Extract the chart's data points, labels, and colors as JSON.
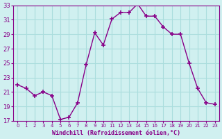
{
  "x": [
    0,
    1,
    2,
    3,
    4,
    5,
    6,
    7,
    8,
    9,
    10,
    11,
    12,
    13,
    14,
    15,
    16,
    17,
    18,
    19,
    20,
    21,
    22,
    23
  ],
  "y": [
    22.0,
    21.5,
    20.5,
    21.0,
    20.5,
    17.2,
    17.5,
    19.5,
    24.8,
    29.2,
    27.5,
    31.1,
    32.0,
    32.0,
    33.2,
    31.5,
    31.5,
    30.0,
    29.0,
    29.0,
    25.0,
    21.5,
    19.5,
    19.3
  ],
  "line_color": "#880088",
  "marker_color": "#880088",
  "bg_color": "#d0f0f0",
  "grid_color": "#aadddd",
  "xlabel": "Windchill (Refroidissement éolien,°C)",
  "xlabel_color": "#880088",
  "tick_color": "#880088",
  "ylim": [
    17,
    33
  ],
  "xlim": [
    -0.5,
    23.5
  ],
  "yticks": [
    17,
    19,
    21,
    23,
    25,
    27,
    29,
    31,
    33
  ],
  "xticks": [
    0,
    1,
    2,
    3,
    4,
    5,
    6,
    7,
    8,
    9,
    10,
    11,
    12,
    13,
    14,
    15,
    16,
    17,
    18,
    19,
    20,
    21,
    22,
    23
  ]
}
